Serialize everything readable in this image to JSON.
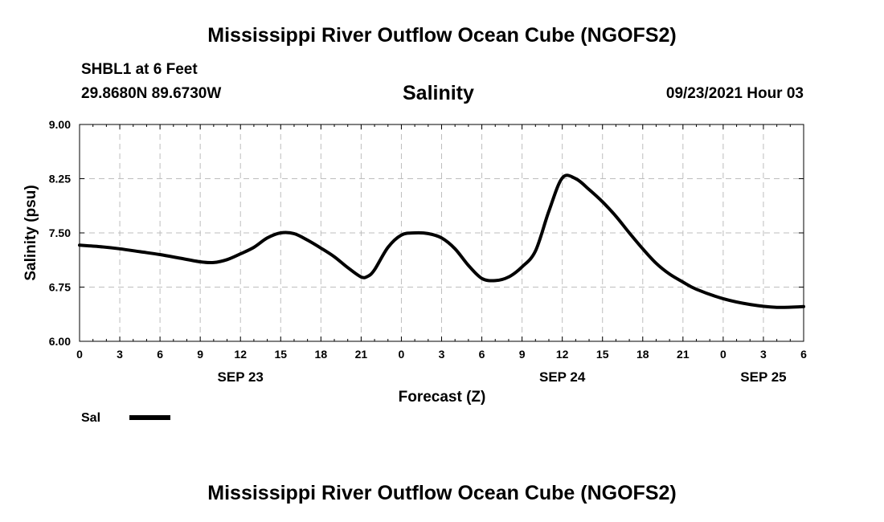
{
  "header": {
    "title": "Mississippi River Outflow Ocean Cube (NGOFS2)",
    "station": "SHBL1 at 6 Feet",
    "coords": "29.8680N  89.6730W",
    "plot_title": "Salinity",
    "datetime": "09/23/2021 Hour 03"
  },
  "footer": {
    "title": "Mississippi River Outflow Ocean Cube (NGOFS2)"
  },
  "legend": {
    "label": "Sal"
  },
  "chart_data": {
    "type": "line",
    "title": "Salinity",
    "xlabel": "Forecast (Z)",
    "ylabel": "Salinity (psu)",
    "xlim": [
      0,
      54
    ],
    "ylim": [
      6.0,
      9.0
    ],
    "grid": true,
    "yticks": [
      6.0,
      6.75,
      7.5,
      8.25,
      9.0
    ],
    "ytick_labels": [
      "6.00",
      "6.75",
      "7.50",
      "8.25",
      "9.00"
    ],
    "xticks": [
      0,
      3,
      6,
      9,
      12,
      15,
      18,
      21,
      24,
      27,
      30,
      33,
      36,
      39,
      42,
      45,
      48,
      51,
      54
    ],
    "xtick_labels": [
      "0",
      "3",
      "6",
      "9",
      "12",
      "15",
      "18",
      "21",
      "0",
      "3",
      "6",
      "9",
      "12",
      "15",
      "18",
      "21",
      "0",
      "3",
      "6"
    ],
    "date_labels": [
      {
        "x": 12,
        "label": "SEP 23"
      },
      {
        "x": 36,
        "label": "SEP 24"
      },
      {
        "x": 51,
        "label": "SEP 25"
      }
    ],
    "series": [
      {
        "name": "Sal",
        "color": "#000000",
        "x": [
          0,
          1.5,
          3,
          4.5,
          6,
          7.5,
          9,
          10,
          11,
          12,
          13,
          14,
          15,
          16,
          17,
          18,
          19,
          20,
          21,
          21.5,
          22,
          23,
          24,
          25,
          26,
          27,
          28,
          29,
          30,
          31,
          32,
          33,
          34,
          35,
          36,
          37,
          38,
          39,
          40,
          41,
          42,
          43,
          44,
          45,
          46,
          48,
          50,
          52,
          54
        ],
        "values": [
          7.33,
          7.31,
          7.28,
          7.24,
          7.2,
          7.15,
          7.1,
          7.09,
          7.13,
          7.21,
          7.3,
          7.43,
          7.5,
          7.49,
          7.4,
          7.29,
          7.17,
          7.02,
          6.89,
          6.9,
          6.99,
          7.3,
          7.47,
          7.5,
          7.49,
          7.43,
          7.28,
          7.05,
          6.87,
          6.84,
          6.89,
          7.03,
          7.25,
          7.8,
          8.26,
          8.25,
          8.1,
          7.93,
          7.73,
          7.5,
          7.28,
          7.08,
          6.93,
          6.82,
          6.72,
          6.59,
          6.51,
          6.47,
          6.48
        ]
      }
    ]
  }
}
